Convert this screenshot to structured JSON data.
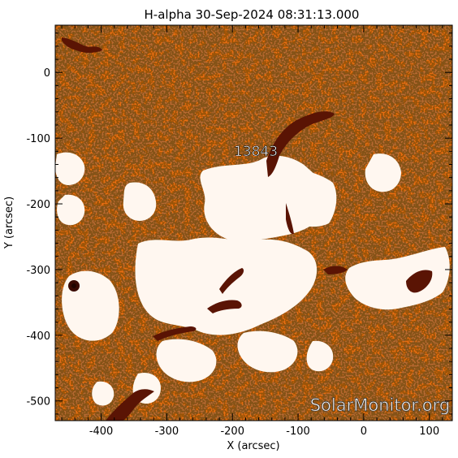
{
  "title": "H-alpha 30-Sep-2024 08:31:13.000",
  "axes": {
    "xlabel": "X (arcsec)",
    "ylabel": "Y (arcsec)",
    "xlim": [
      -470,
      135
    ],
    "ylim": [
      -530,
      72
    ],
    "xticks": [
      -400,
      -300,
      -200,
      -100,
      0,
      100
    ],
    "yticks": [
      0,
      -100,
      -200,
      -300,
      -400,
      -500
    ]
  },
  "region_label": "13843",
  "watermark": "SolarMonitor.org",
  "colors": {
    "background": "#ffffff",
    "plage_white": "#fff7f0",
    "chromosphere_orange": "#e86d12",
    "mottle_dark": "#7a2406",
    "filament_dark": "#5a1404"
  }
}
